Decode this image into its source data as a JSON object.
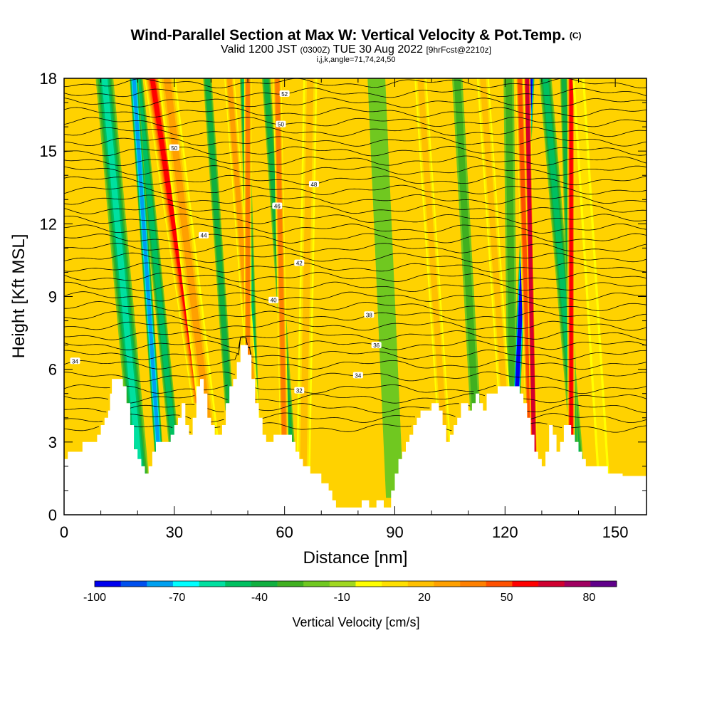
{
  "chart_data": {
    "type": "heatmap",
    "title": "Wind-Parallel Section at Max W: Vertical Velocity & Pot.Temp.",
    "title_mark": "(C)",
    "subtitle_parts": [
      "Valid 1200 JST",
      "(0300Z)",
      "TUE 30 Aug 2022",
      "[9hrFcst@2210z]"
    ],
    "subtitle2": "i,j,k,angle=71,74,24,50",
    "xlabel": "Distance [nm]",
    "ylabel": "Height [Kft MSL]",
    "xlim": [
      0,
      158.5
    ],
    "ylim": [
      0,
      18
    ],
    "x_ticks": [
      "0",
      "30",
      "60",
      "90",
      "120",
      "150"
    ],
    "x_tick_values": [
      0,
      30,
      60,
      90,
      120,
      150
    ],
    "y_ticks": [
      "0",
      "3",
      "6",
      "9",
      "12",
      "15",
      "18"
    ],
    "y_tick_values": [
      0,
      3,
      6,
      9,
      12,
      15,
      18
    ],
    "colorbar": {
      "label": "Vertical Velocity [cm/s]",
      "range": [
        -100,
        90
      ],
      "step": 10,
      "tick_labels": [
        "-100",
        "-70",
        "-40",
        "-10",
        "20",
        "50",
        "80"
      ],
      "tick_values": [
        -100,
        -70,
        -40,
        -10,
        20,
        50,
        80
      ],
      "colors": [
        "#0000ee",
        "#0050ee",
        "#00a0f0",
        "#00ffff",
        "#00e0a0",
        "#00c060",
        "#10b040",
        "#40b020",
        "#70c820",
        "#a0d820",
        "#ffff00",
        "#ffe000",
        "#ffc000",
        "#ffa000",
        "#ff8000",
        "#ff5000",
        "#ff0000",
        "#d00030",
        "#a00060",
        "#60008a"
      ]
    },
    "terrain_top_kft": [
      [
        0,
        2.3
      ],
      [
        1,
        2.3
      ],
      [
        1,
        2.6
      ],
      [
        5,
        2.6
      ],
      [
        5,
        3.0
      ],
      [
        9,
        3.0
      ],
      [
        9,
        3.3
      ],
      [
        10,
        3.3
      ],
      [
        10,
        3.7
      ],
      [
        11,
        3.7
      ],
      [
        11,
        4.0
      ],
      [
        12,
        4.0
      ],
      [
        12,
        4.3
      ],
      [
        12.5,
        4.3
      ],
      [
        12.5,
        5.0
      ],
      [
        13,
        5.0
      ],
      [
        13,
        5.6
      ],
      [
        16,
        5.6
      ],
      [
        16,
        5.3
      ],
      [
        17,
        5.3
      ],
      [
        17,
        4.6
      ],
      [
        18,
        4.6
      ],
      [
        18,
        3.7
      ],
      [
        19,
        3.7
      ],
      [
        19,
        2.7
      ],
      [
        20,
        2.7
      ],
      [
        20,
        2.3
      ],
      [
        21,
        2.3
      ],
      [
        21,
        2.0
      ],
      [
        22,
        2.0
      ],
      [
        22,
        1.7
      ],
      [
        23,
        1.7
      ],
      [
        23,
        2.0
      ],
      [
        24,
        2.0
      ],
      [
        24,
        2.6
      ],
      [
        25,
        2.6
      ],
      [
        25,
        3.0
      ],
      [
        29,
        3.0
      ],
      [
        29,
        3.3
      ],
      [
        30,
        3.3
      ],
      [
        30,
        3.7
      ],
      [
        31,
        3.7
      ],
      [
        31,
        4.0
      ],
      [
        32,
        4.0
      ],
      [
        32,
        4.6
      ],
      [
        33,
        4.6
      ],
      [
        33,
        3.7
      ],
      [
        34,
        3.7
      ],
      [
        34,
        3.3
      ],
      [
        35,
        3.3
      ],
      [
        35,
        4.0
      ],
      [
        36,
        4.0
      ],
      [
        36,
        5.3
      ],
      [
        37,
        5.3
      ],
      [
        37,
        5.6
      ],
      [
        38,
        5.6
      ],
      [
        38,
        5.0
      ],
      [
        39,
        5.0
      ],
      [
        39,
        4.0
      ],
      [
        40,
        4.0
      ],
      [
        40,
        3.7
      ],
      [
        41,
        3.7
      ],
      [
        41,
        3.3
      ],
      [
        43,
        3.3
      ],
      [
        43,
        3.7
      ],
      [
        44,
        3.7
      ],
      [
        44,
        4.6
      ],
      [
        45,
        4.6
      ],
      [
        45,
        5.3
      ],
      [
        46,
        5.3
      ],
      [
        46,
        5.6
      ],
      [
        47,
        5.6
      ],
      [
        47,
        6.3
      ],
      [
        48,
        6.3
      ],
      [
        48,
        7.0
      ],
      [
        50,
        7.0
      ],
      [
        50,
        6.6
      ],
      [
        51,
        6.6
      ],
      [
        51,
        5.6
      ],
      [
        52,
        5.6
      ],
      [
        52,
        4.6
      ],
      [
        53,
        4.6
      ],
      [
        53,
        4.0
      ],
      [
        54,
        4.0
      ],
      [
        54,
        3.3
      ],
      [
        55,
        3.3
      ],
      [
        55,
        3.0
      ],
      [
        57,
        3.0
      ],
      [
        57,
        3.3
      ],
      [
        62,
        3.3
      ],
      [
        62,
        3.0
      ],
      [
        63,
        3.0
      ],
      [
        63,
        2.6
      ],
      [
        64,
        2.6
      ],
      [
        64,
        2.3
      ],
      [
        65,
        2.3
      ],
      [
        65,
        2.0
      ],
      [
        67,
        2.0
      ],
      [
        67,
        1.7
      ],
      [
        70,
        1.7
      ],
      [
        70,
        1.3
      ],
      [
        72,
        1.3
      ],
      [
        72,
        1.0
      ],
      [
        73,
        1.0
      ],
      [
        73,
        0.6
      ],
      [
        74,
        0.6
      ],
      [
        74,
        0.3
      ],
      [
        81,
        0.3
      ],
      [
        81,
        0.6
      ],
      [
        83,
        0.6
      ],
      [
        83,
        0.3
      ],
      [
        85,
        0.3
      ],
      [
        85,
        0.6
      ],
      [
        87,
        0.6
      ],
      [
        87,
        0.3
      ],
      [
        89,
        0.3
      ],
      [
        89,
        1.0
      ],
      [
        90,
        1.0
      ],
      [
        90,
        1.7
      ],
      [
        91,
        1.7
      ],
      [
        91,
        2.3
      ],
      [
        92,
        2.3
      ],
      [
        92,
        2.6
      ],
      [
        93,
        2.6
      ],
      [
        93,
        3.0
      ],
      [
        94,
        3.0
      ],
      [
        94,
        3.3
      ],
      [
        95,
        3.3
      ],
      [
        95,
        3.7
      ],
      [
        96,
        3.7
      ],
      [
        96,
        4.0
      ],
      [
        97,
        4.0
      ],
      [
        97,
        4.3
      ],
      [
        100,
        4.3
      ],
      [
        100,
        4.6
      ],
      [
        102,
        4.6
      ],
      [
        102,
        4.3
      ],
      [
        103,
        4.3
      ],
      [
        103,
        3.7
      ],
      [
        104,
        3.7
      ],
      [
        104,
        3.0
      ],
      [
        105,
        3.0
      ],
      [
        105,
        3.3
      ],
      [
        106,
        3.3
      ],
      [
        106,
        3.7
      ],
      [
        107,
        3.7
      ],
      [
        107,
        4.0
      ],
      [
        108,
        4.0
      ],
      [
        108,
        4.6
      ],
      [
        110,
        4.6
      ],
      [
        110,
        4.3
      ],
      [
        111,
        4.3
      ],
      [
        111,
        4.6
      ],
      [
        112,
        4.6
      ],
      [
        112,
        5.0
      ],
      [
        113,
        5.0
      ],
      [
        113,
        4.6
      ],
      [
        114,
        4.6
      ],
      [
        114,
        4.3
      ],
      [
        115,
        4.3
      ],
      [
        115,
        5.0
      ],
      [
        118,
        5.0
      ],
      [
        118,
        5.3
      ],
      [
        124,
        5.3
      ],
      [
        124,
        5.0
      ],
      [
        125,
        5.0
      ],
      [
        125,
        4.6
      ],
      [
        126,
        4.6
      ],
      [
        126,
        4.0
      ],
      [
        127,
        4.0
      ],
      [
        127,
        3.3
      ],
      [
        128,
        3.3
      ],
      [
        128,
        2.6
      ],
      [
        129,
        2.6
      ],
      [
        129,
        2.3
      ],
      [
        130,
        2.3
      ],
      [
        130,
        2.0
      ],
      [
        131,
        2.0
      ],
      [
        131,
        2.6
      ],
      [
        132,
        2.6
      ],
      [
        132,
        3.7
      ],
      [
        133,
        3.7
      ],
      [
        133,
        3.3
      ],
      [
        134,
        3.3
      ],
      [
        134,
        2.6
      ],
      [
        135,
        2.6
      ],
      [
        135,
        3.0
      ],
      [
        136,
        3.0
      ],
      [
        136,
        3.7
      ],
      [
        138,
        3.7
      ],
      [
        138,
        3.3
      ],
      [
        139,
        3.3
      ],
      [
        139,
        3.0
      ],
      [
        140,
        3.0
      ],
      [
        140,
        2.6
      ],
      [
        141,
        2.6
      ],
      [
        141,
        2.3
      ],
      [
        142,
        2.3
      ],
      [
        142,
        2.0
      ],
      [
        148,
        2.0
      ],
      [
        148,
        1.7
      ],
      [
        152,
        1.7
      ],
      [
        152,
        1.6
      ],
      [
        158.5,
        1.6
      ]
    ],
    "updraft_bands": [
      {
        "x_top": 24,
        "x_bottom": 37,
        "w": 70,
        "width_nm": 3.5
      },
      {
        "x_top": 28,
        "x_bottom": 40,
        "w": 40,
        "width_nm": 4.0
      },
      {
        "x_top": 45,
        "x_bottom": 52,
        "w": 40,
        "width_nm": 2.0
      },
      {
        "x_top": 50,
        "x_bottom": 50,
        "w": 50,
        "width_nm": 1.2
      },
      {
        "x_top": 58,
        "x_bottom": 60,
        "w": 50,
        "width_nm": 1.5
      },
      {
        "x_top": 67,
        "x_bottom": 65,
        "w": 30,
        "width_nm": 3.0
      },
      {
        "x_top": 97,
        "x_bottom": 104,
        "w": 25,
        "width_nm": 2.5
      },
      {
        "x_top": 114,
        "x_bottom": 120,
        "w": 25,
        "width_nm": 2.5
      },
      {
        "x_top": 124,
        "x_bottom": 127,
        "w": 60,
        "width_nm": 1.5
      },
      {
        "x_top": 126,
        "x_bottom": 128,
        "w": 80,
        "width_nm": 1.0
      },
      {
        "x_top": 138,
        "x_bottom": 138,
        "w": 70,
        "width_nm": 1.2
      },
      {
        "x_top": 140,
        "x_bottom": 147,
        "w": 20,
        "width_nm": 2.5
      }
    ],
    "downdraft_bands": [
      {
        "x_top": 20,
        "x_bottom": 30,
        "w": -40,
        "width_nm": 2.0
      },
      {
        "x_top": 11,
        "x_bottom": 21,
        "w": -50,
        "width_nm": 4.0
      },
      {
        "x_top": 19,
        "x_bottom": 26,
        "w": -70,
        "width_nm": 1.5
      },
      {
        "x_top": 39,
        "x_bottom": 45,
        "w": -30,
        "width_nm": 1.5
      },
      {
        "x_top": 49,
        "x_bottom": 52,
        "w": -40,
        "width_nm": 1.5
      },
      {
        "x_top": 55,
        "x_bottom": 62,
        "w": -30,
        "width_nm": 1.5
      },
      {
        "x_top": 85,
        "x_bottom": 90,
        "w": -10,
        "width_nm": 4.0
      },
      {
        "x_top": 107,
        "x_bottom": 112,
        "w": -20,
        "width_nm": 2.0
      },
      {
        "x_top": 121,
        "x_bottom": 122,
        "w": -20,
        "width_nm": 2.0
      },
      {
        "x_top": 127,
        "x_bottom": 123,
        "w": -100,
        "width_nm": 1.2
      },
      {
        "x_top": 131,
        "x_bottom": 140,
        "w": -40,
        "width_nm": 2.5
      },
      {
        "x_top": 136,
        "x_bottom": 139,
        "w": -30,
        "width_nm": 1.2
      }
    ],
    "theta_contours": [
      {
        "base_h": 6.2,
        "label": "34",
        "label_x": 3
      },
      {
        "base_h": 6.6
      },
      {
        "base_h": 7.0,
        "label": "36",
        "label_x": 85
      },
      {
        "base_h": 7.4
      },
      {
        "base_h": 7.8
      },
      {
        "base_h": 8.2,
        "label": "38",
        "label_x": 83
      },
      {
        "base_h": 8.6
      },
      {
        "base_h": 9.0,
        "label": "40",
        "label_x": 57
      },
      {
        "base_h": 9.4
      },
      {
        "base_h": 9.8
      },
      {
        "base_h": 10.2,
        "label": "42",
        "label_x": 64
      },
      {
        "base_h": 10.6
      },
      {
        "base_h": 11.0
      },
      {
        "base_h": 11.4,
        "label": "44",
        "label_x": 38
      },
      {
        "base_h": 11.8
      },
      {
        "base_h": 12.2
      },
      {
        "base_h": 12.6,
        "label": "46",
        "label_x": 58
      },
      {
        "base_h": 13.0
      },
      {
        "base_h": 13.4
      },
      {
        "base_h": 13.8,
        "label": "48",
        "label_x": 68
      },
      {
        "base_h": 14.2
      },
      {
        "base_h": 14.6
      },
      {
        "base_h": 15.0,
        "label": "50",
        "label_x": 30
      },
      {
        "base_h": 15.4
      },
      {
        "base_h": 15.8
      },
      {
        "base_h": 16.2,
        "label": "50",
        "label_x": 59
      },
      {
        "base_h": 16.6
      },
      {
        "base_h": 17.0
      },
      {
        "base_h": 17.4,
        "label": "52",
        "label_x": 60
      },
      {
        "base_h": 17.8
      }
    ],
    "low_contours": [
      {
        "base_h": 5.2,
        "label": "32",
        "label_x": 64
      },
      {
        "base_h": 5.7,
        "label": "34",
        "label_x": 80
      },
      {
        "base_h": 4.8
      },
      {
        "base_h": 4.4
      },
      {
        "base_h": 4.0
      },
      {
        "base_h": 3.6
      }
    ]
  }
}
